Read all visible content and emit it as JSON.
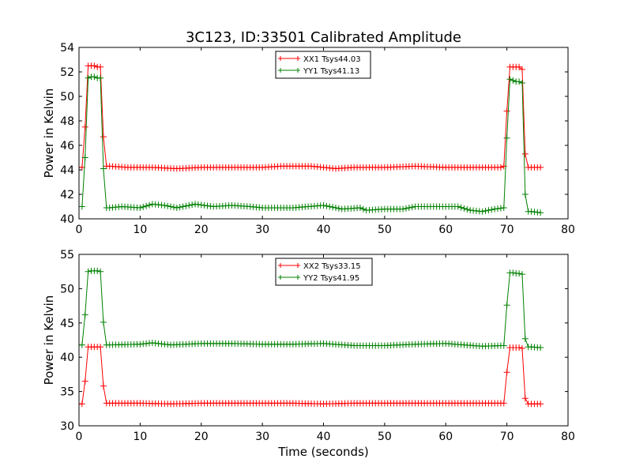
{
  "chart_data": [
    {
      "type": "line",
      "title": "3C123, ID:33501 Calibrated Amplitude",
      "xlabel": "",
      "ylabel": "Power in Kelvin",
      "xlim": [
        0,
        80
      ],
      "ylim": [
        40,
        54
      ],
      "xticks": [
        0,
        10,
        20,
        30,
        40,
        50,
        60,
        70,
        80
      ],
      "yticks": [
        40,
        42,
        44,
        46,
        48,
        50,
        52,
        54
      ],
      "grid": false,
      "legend_position": "top-center",
      "series": [
        {
          "name": "XX1 Tsys44.03",
          "color": "#ff0000",
          "marker": "+",
          "points": [
            [
              0.0,
              44.2
            ],
            [
              0.5,
              44.2
            ],
            [
              1.0,
              47.5
            ],
            [
              1.5,
              52.5
            ],
            [
              2.0,
              52.5
            ],
            [
              2.5,
              52.5
            ],
            [
              3.0,
              52.4
            ],
            [
              3.5,
              52.4
            ],
            [
              4.0,
              46.7
            ],
            [
              4.5,
              44.3
            ],
            [
              5.0,
              44.3
            ],
            [
              8.0,
              44.2
            ],
            [
              12.0,
              44.2
            ],
            [
              16.0,
              44.1
            ],
            [
              20.0,
              44.2
            ],
            [
              25.0,
              44.2
            ],
            [
              30.0,
              44.2
            ],
            [
              33.0,
              44.3
            ],
            [
              38.0,
              44.3
            ],
            [
              42.0,
              44.1
            ],
            [
              45.0,
              44.2
            ],
            [
              50.0,
              44.2
            ],
            [
              55.0,
              44.3
            ],
            [
              60.0,
              44.2
            ],
            [
              63.0,
              44.2
            ],
            [
              66.0,
              44.2
            ],
            [
              69.0,
              44.2
            ],
            [
              69.5,
              44.3
            ],
            [
              70.0,
              48.8
            ],
            [
              70.5,
              52.4
            ],
            [
              71.0,
              52.4
            ],
            [
              71.5,
              52.4
            ],
            [
              72.0,
              52.4
            ],
            [
              72.5,
              52.2
            ],
            [
              73.0,
              45.3
            ],
            [
              73.5,
              44.2
            ],
            [
              74.0,
              44.2
            ],
            [
              75.5,
              44.2
            ]
          ]
        },
        {
          "name": "YY1 Tsys41.13",
          "color": "#008000",
          "marker": "+",
          "points": [
            [
              0.0,
              41.0
            ],
            [
              0.5,
              41.0
            ],
            [
              1.0,
              45.0
            ],
            [
              1.5,
              51.5
            ],
            [
              2.0,
              51.6
            ],
            [
              2.5,
              51.6
            ],
            [
              3.0,
              51.5
            ],
            [
              3.5,
              51.5
            ],
            [
              4.0,
              44.1
            ],
            [
              4.5,
              40.9
            ],
            [
              5.0,
              40.9
            ],
            [
              7.0,
              41.0
            ],
            [
              10.0,
              40.9
            ],
            [
              12.0,
              41.2
            ],
            [
              14.0,
              41.1
            ],
            [
              16.0,
              40.9
            ],
            [
              19.0,
              41.2
            ],
            [
              22.0,
              41.0
            ],
            [
              25.0,
              41.1
            ],
            [
              28.0,
              41.0
            ],
            [
              30.0,
              40.9
            ],
            [
              35.0,
              40.9
            ],
            [
              40.0,
              41.1
            ],
            [
              43.0,
              40.8
            ],
            [
              46.0,
              40.9
            ],
            [
              47.0,
              40.7
            ],
            [
              50.0,
              40.8
            ],
            [
              53.0,
              40.8
            ],
            [
              55.0,
              41.0
            ],
            [
              60.0,
              41.0
            ],
            [
              62.0,
              41.0
            ],
            [
              64.0,
              40.7
            ],
            [
              66.0,
              40.6
            ],
            [
              68.0,
              40.8
            ],
            [
              69.5,
              40.9
            ],
            [
              70.0,
              46.6
            ],
            [
              70.5,
              51.4
            ],
            [
              71.0,
              51.3
            ],
            [
              71.5,
              51.2
            ],
            [
              72.0,
              51.2
            ],
            [
              72.5,
              51.1
            ],
            [
              73.0,
              42.0
            ],
            [
              73.5,
              40.6
            ],
            [
              74.0,
              40.6
            ],
            [
              75.5,
              40.5
            ]
          ]
        }
      ]
    },
    {
      "type": "line",
      "title": "",
      "xlabel": "Time (seconds)",
      "ylabel": "Power in Kelvin",
      "xlim": [
        0,
        80
      ],
      "ylim": [
        30,
        55
      ],
      "xticks": [
        0,
        10,
        20,
        30,
        40,
        50,
        60,
        70,
        80
      ],
      "yticks": [
        30,
        35,
        40,
        45,
        50,
        55
      ],
      "grid": false,
      "legend_position": "top-center",
      "series": [
        {
          "name": "XX2 Tsys33.15",
          "color": "#ff0000",
          "marker": "+",
          "points": [
            [
              0.0,
              33.2
            ],
            [
              0.5,
              33.2
            ],
            [
              1.0,
              36.5
            ],
            [
              1.5,
              41.5
            ],
            [
              2.0,
              41.5
            ],
            [
              3.0,
              41.5
            ],
            [
              3.5,
              41.5
            ],
            [
              4.0,
              35.8
            ],
            [
              4.5,
              33.3
            ],
            [
              5.0,
              33.3
            ],
            [
              10.0,
              33.3
            ],
            [
              15.0,
              33.2
            ],
            [
              20.0,
              33.3
            ],
            [
              25.0,
              33.3
            ],
            [
              30.0,
              33.3
            ],
            [
              35.0,
              33.3
            ],
            [
              40.0,
              33.2
            ],
            [
              45.0,
              33.3
            ],
            [
              50.0,
              33.3
            ],
            [
              55.0,
              33.3
            ],
            [
              60.0,
              33.3
            ],
            [
              65.0,
              33.3
            ],
            [
              69.0,
              33.3
            ],
            [
              69.5,
              33.3
            ],
            [
              70.0,
              37.8
            ],
            [
              70.5,
              41.4
            ],
            [
              71.0,
              41.4
            ],
            [
              72.0,
              41.4
            ],
            [
              72.5,
              41.3
            ],
            [
              73.0,
              34.0
            ],
            [
              73.5,
              33.2
            ],
            [
              74.0,
              33.2
            ],
            [
              75.5,
              33.2
            ]
          ]
        },
        {
          "name": "YY2 Tsys41.95",
          "color": "#008000",
          "marker": "+",
          "points": [
            [
              0.0,
              41.8
            ],
            [
              0.5,
              41.8
            ],
            [
              1.0,
              46.2
            ],
            [
              1.5,
              52.5
            ],
            [
              2.0,
              52.6
            ],
            [
              3.0,
              52.6
            ],
            [
              3.5,
              52.5
            ],
            [
              4.0,
              45.1
            ],
            [
              4.5,
              41.8
            ],
            [
              5.0,
              41.8
            ],
            [
              10.0,
              41.9
            ],
            [
              12.0,
              42.1
            ],
            [
              15.0,
              41.8
            ],
            [
              20.0,
              42.0
            ],
            [
              25.0,
              42.0
            ],
            [
              30.0,
              41.9
            ],
            [
              35.0,
              41.9
            ],
            [
              40.0,
              42.0
            ],
            [
              45.0,
              41.7
            ],
            [
              50.0,
              41.7
            ],
            [
              55.0,
              41.9
            ],
            [
              60.0,
              42.0
            ],
            [
              63.0,
              41.8
            ],
            [
              66.0,
              41.6
            ],
            [
              69.0,
              41.7
            ],
            [
              69.5,
              41.7
            ],
            [
              70.0,
              47.6
            ],
            [
              70.5,
              52.3
            ],
            [
              71.0,
              52.3
            ],
            [
              72.0,
              52.2
            ],
            [
              72.5,
              52.1
            ],
            [
              73.0,
              42.7
            ],
            [
              73.5,
              41.5
            ],
            [
              74.0,
              41.5
            ],
            [
              75.5,
              41.4
            ]
          ]
        }
      ]
    }
  ]
}
